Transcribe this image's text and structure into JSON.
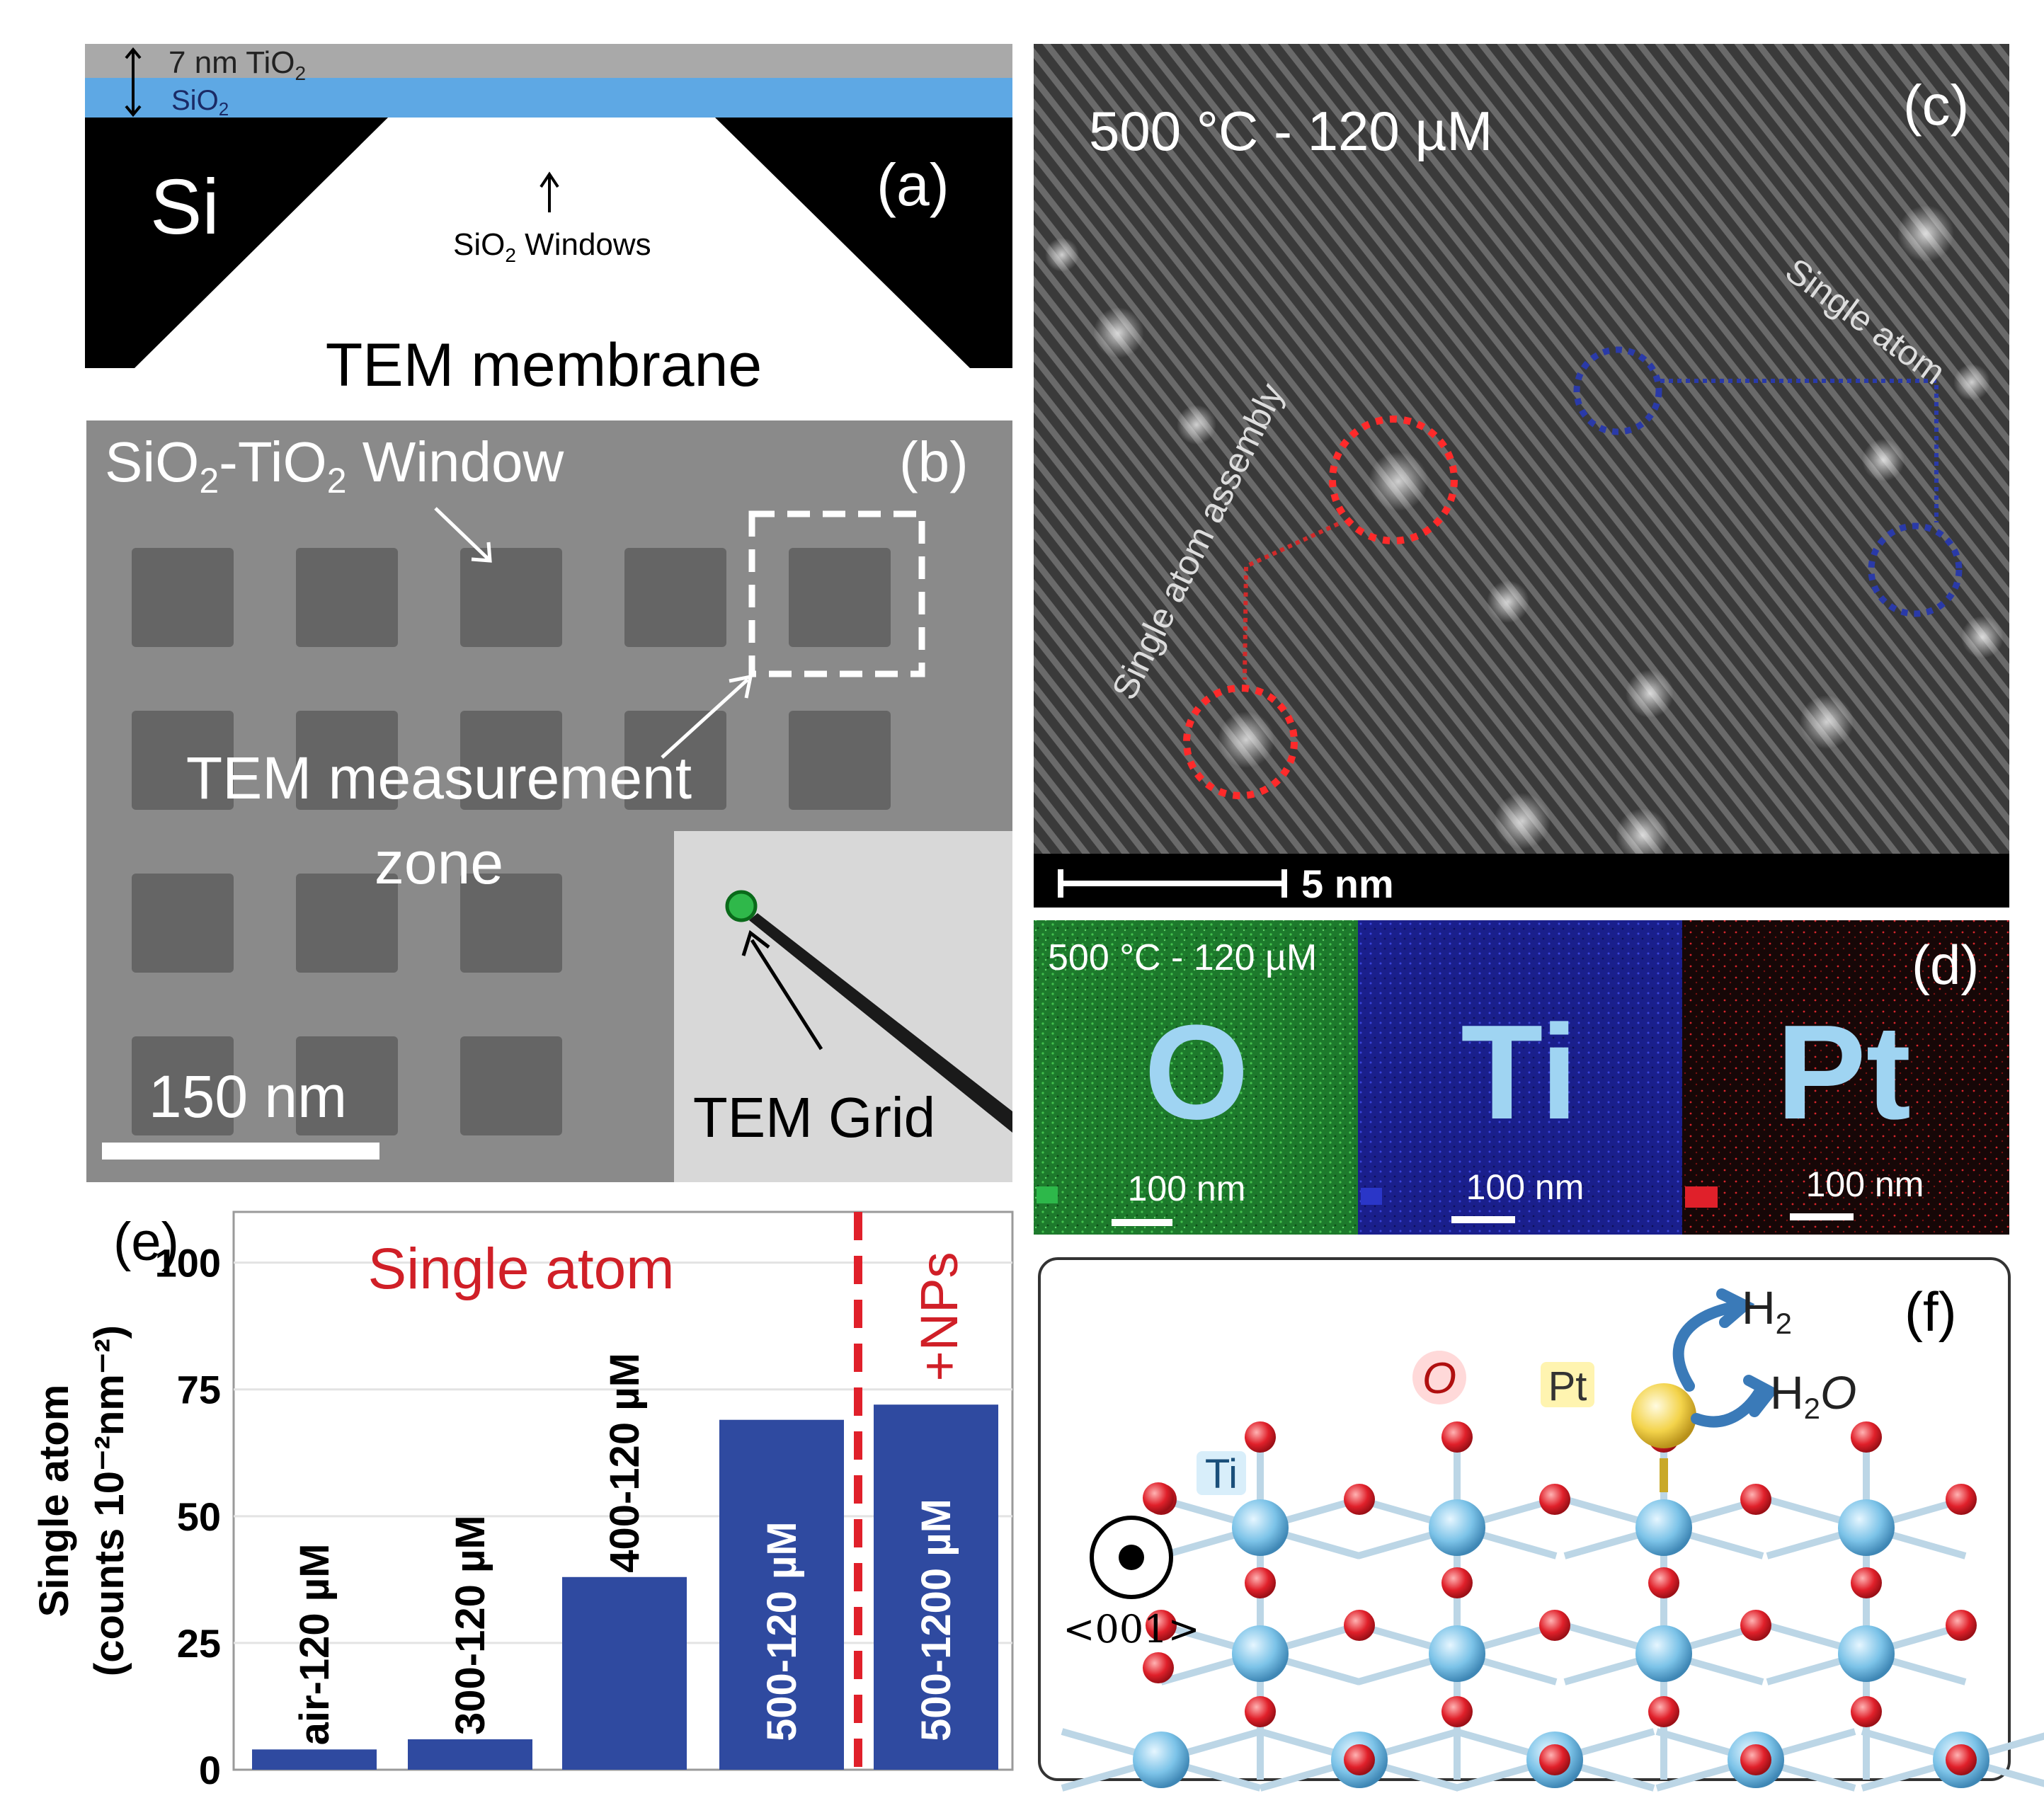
{
  "panel_a": {
    "tio2_layer": "7 nm TiO",
    "tio2_sub": "2",
    "sio2_layer": "SiO",
    "sio2_sub": "2",
    "si_label": "Si",
    "window_label": "SiO",
    "window_sub": "2",
    "window_rest": " Windows",
    "caption": "TEM membrane",
    "letter": "(a)"
  },
  "panel_b": {
    "title_p1": "SiO",
    "title_s1": "2",
    "title_p2": "-TiO",
    "title_s2": "2",
    "title_p3": " Window",
    "letter": "(b)",
    "zone_line1": "TEM measurement",
    "zone_line2": "zone",
    "scale": "150 nm",
    "inset_label": "TEM Grid"
  },
  "panel_c": {
    "condition": "500 °C - 120 µM",
    "letter": "(c)",
    "label_assembly": "Single atom assembly",
    "label_single": "Single atom",
    "scale": "5 nm"
  },
  "panel_d": {
    "condition": "500 °C - 120 µM",
    "letter": "(d)",
    "maps": [
      {
        "element": "O",
        "scale": "100 nm",
        "color": "#1d7a2c"
      },
      {
        "element": "Ti",
        "scale": "100 nm",
        "color": "#1a1f8c"
      },
      {
        "element": "Pt",
        "scale": "100 nm",
        "color": "#2a0b0b"
      }
    ]
  },
  "panel_e": {
    "letter": "(e)",
    "ylabel_line1": "Single atom",
    "ylabel_line2": "(counts 10⁻²nm⁻²)",
    "group_label_left": "Single atom",
    "group_label_right": "+NPs",
    "bar_color": "#2f4aa0",
    "divider_color": "#e0202a"
  },
  "chart_data": {
    "type": "bar",
    "categories": [
      "air-120 µM",
      "300-120 µM",
      "400-120 µM",
      "500-120 µM",
      "500-1200 µM"
    ],
    "values": [
      4,
      6,
      38,
      69,
      72
    ],
    "ylim": [
      0,
      110
    ],
    "yticks": [
      0,
      25,
      50,
      75,
      100
    ],
    "ylabel": "Single atom (counts 10⁻²nm⁻²)",
    "grid": true
  },
  "panel_f": {
    "letter": "(f)",
    "label_ti": "Ti",
    "label_o": "O",
    "label_pt": "Pt",
    "label_h2": "H",
    "label_h2_sub": "2",
    "label_h2o": "H",
    "label_h2o_sub": "2",
    "label_h2o_o": "O",
    "direction": "<001>",
    "ti_color": "#7cc3e8",
    "o_color": "#e0202a",
    "pt_color": "#f3d34a"
  }
}
